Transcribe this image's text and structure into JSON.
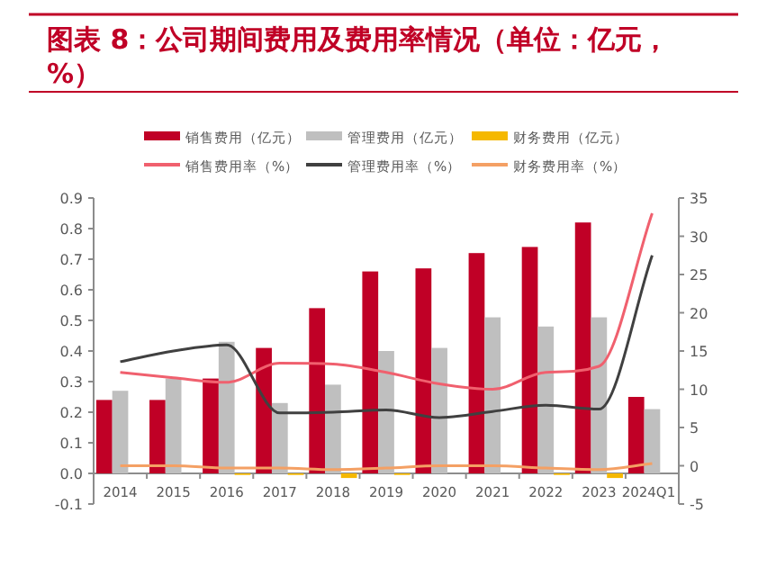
{
  "chart_data": {
    "type": "bar",
    "title": "图表 8：公司期间费用及费用率情况（单位：亿元，%）",
    "categories": [
      "2014",
      "2015",
      "2016",
      "2017",
      "2018",
      "2019",
      "2020",
      "2021",
      "2022",
      "2023",
      "2024Q1"
    ],
    "series": [
      {
        "name": "销售费用（亿元）",
        "color": "#c00026",
        "values": [
          0.24,
          0.24,
          0.31,
          0.41,
          0.54,
          0.66,
          0.67,
          0.72,
          0.74,
          0.82,
          0.25
        ]
      },
      {
        "name": "管理费用（亿元）",
        "color": "#bfbfbf",
        "values": [
          0.27,
          0.31,
          0.43,
          0.23,
          0.29,
          0.4,
          0.41,
          0.51,
          0.48,
          0.51,
          0.21
        ]
      },
      {
        "name": "财务费用（亿元）",
        "color": "#f5b800",
        "values": [
          0.0,
          0.0,
          -0.005,
          -0.005,
          -0.015,
          -0.005,
          0.0,
          0.0,
          -0.005,
          -0.015,
          0.0
        ]
      },
      {
        "name": "销售费用率（%）",
        "type": "line",
        "axis": "y2",
        "color": "#f0606e",
        "values": [
          12.2,
          11.5,
          10.9,
          13.4,
          13.3,
          12.2,
          10.7,
          10.0,
          12.2,
          13.0,
          33.0
        ]
      },
      {
        "name": "管理费用率（%）",
        "type": "line",
        "axis": "y2",
        "color": "#404040",
        "values": [
          13.6,
          15.0,
          15.8,
          6.9,
          7.0,
          7.3,
          6.3,
          7.1,
          7.9,
          7.4,
          27.5
        ]
      },
      {
        "name": "财务费用率（%）",
        "type": "line",
        "axis": "y2",
        "color": "#f4a064",
        "values": [
          0.0,
          0.0,
          -0.3,
          -0.3,
          -0.5,
          -0.3,
          0.0,
          0.0,
          -0.3,
          -0.5,
          0.3
        ]
      }
    ],
    "ylim": [
      -0.1,
      0.9
    ],
    "yticks": [
      -0.1,
      {
        "value": 0,
        "label": "0.0"
      },
      0.1,
      0.2,
      0.3,
      0.4,
      0.5,
      0.6,
      0.7,
      0.8,
      0.9
    ],
    "y2lim": [
      -5,
      35
    ],
    "y2ticks": [
      -5,
      0,
      5,
      10,
      15,
      20,
      25,
      30,
      35
    ],
    "legend": "top",
    "grid": false
  }
}
